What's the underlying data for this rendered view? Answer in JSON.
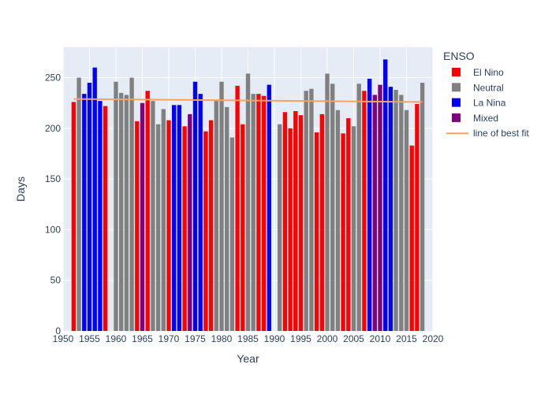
{
  "chart_data": {
    "type": "bar",
    "xlabel": "Year",
    "ylabel": "Days",
    "xlim": [
      1950,
      2020
    ],
    "ylim": [
      0,
      280
    ],
    "x_ticks": [
      1950,
      1955,
      1960,
      1965,
      1970,
      1975,
      1980,
      1985,
      1990,
      1995,
      2000,
      2005,
      2010,
      2015,
      2020
    ],
    "y_ticks": [
      0,
      50,
      100,
      150,
      200,
      250
    ],
    "grid": true,
    "plot_background": "#e5ecf6",
    "legend": {
      "title": "ENSO",
      "placement": "top-right-outside",
      "fit_label": "line of best fit"
    },
    "series": [
      {
        "name": "El Nino",
        "color": "#ff0000",
        "x": [
          1952,
          1958,
          1964,
          1966,
          1970,
          1973,
          1977,
          1978,
          1983,
          1984,
          1987,
          1988,
          1992,
          1993,
          1994,
          1995,
          1998,
          1999,
          2003,
          2004,
          2007,
          2016,
          2017
        ],
        "values": [
          226,
          222,
          207,
          237,
          208,
          202,
          197,
          208,
          242,
          204,
          234,
          232,
          216,
          200,
          217,
          213,
          196,
          214,
          195,
          210,
          237,
          183,
          224
        ]
      },
      {
        "name": "Neutral",
        "color": "#808080",
        "x": [
          1953,
          1960,
          1961,
          1962,
          1963,
          1967,
          1968,
          1969,
          1979,
          1980,
          1981,
          1982,
          1985,
          1986,
          1991,
          1996,
          1997,
          2000,
          2001,
          2002,
          2005,
          2006,
          2013,
          2014,
          2015,
          2018
        ],
        "values": [
          250,
          246,
          235,
          233,
          250,
          227,
          204,
          219,
          227,
          246,
          221,
          191,
          254,
          234,
          204,
          237,
          239,
          254,
          244,
          218,
          202,
          244,
          238,
          233,
          218,
          245
        ]
      },
      {
        "name": "La Nina",
        "color": "#0000ff",
        "x": [
          1954,
          1955,
          1956,
          1957,
          1971,
          1972,
          1975,
          1976,
          1989,
          2008,
          2011,
          2012
        ],
        "values": [
          234,
          245,
          260,
          227,
          223,
          223,
          246,
          234,
          243,
          249,
          268,
          241
        ]
      },
      {
        "name": "Mixed",
        "color": "#800080",
        "x": [
          1965,
          1974,
          2009,
          2010
        ],
        "values": [
          225,
          214,
          233,
          243
        ]
      }
    ],
    "fit_line": {
      "name": "line of best fit",
      "color": "#ffa15a",
      "x": [
        1952,
        2018
      ],
      "values": [
        229,
        226
      ]
    }
  }
}
